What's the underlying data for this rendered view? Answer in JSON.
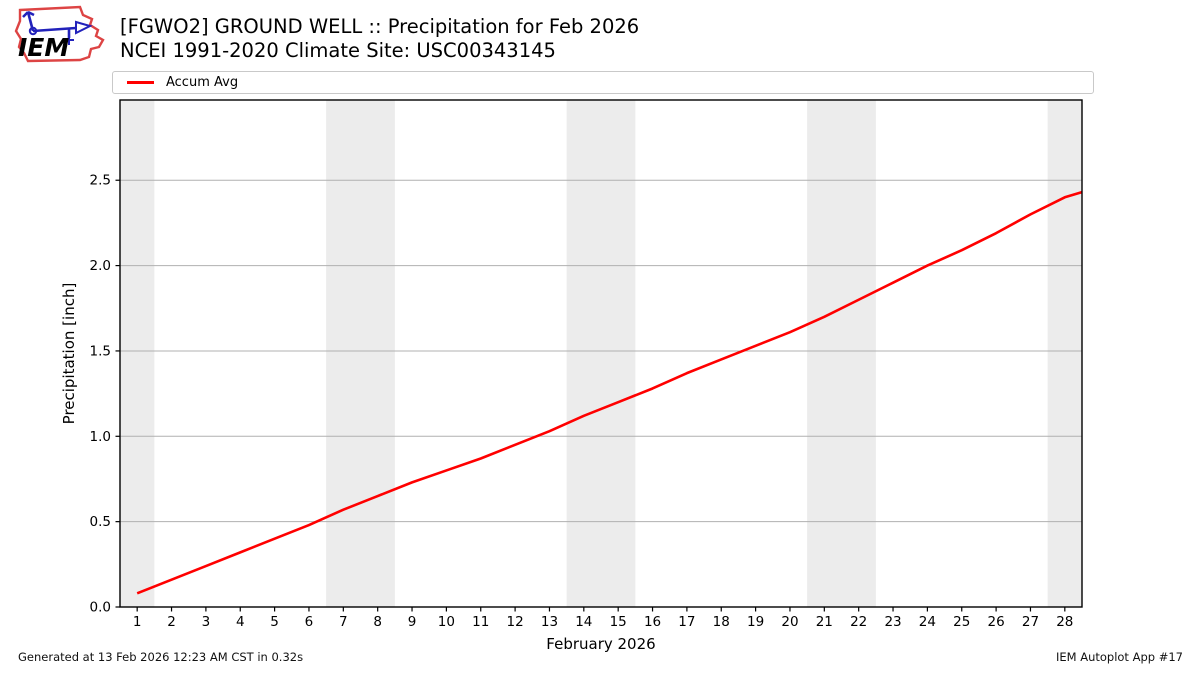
{
  "header": {
    "logo_text": "IEM"
  },
  "legend": {
    "items": [
      {
        "label": "Accum Avg",
        "color": "#ff0000"
      }
    ]
  },
  "footer": {
    "left": "Generated at 13 Feb 2026 12:23 AM CST in 0.32s",
    "right": "IEM Autoplot App #17"
  },
  "colors": {
    "line_red": "#ff0000",
    "weekend_band": "#ececec",
    "gridline": "#b0b0b0",
    "plot_border": "#000000",
    "logo_red": "#dd4444",
    "logo_blue": "#2222bb"
  },
  "chart_data": {
    "type": "line",
    "title": "[FGWO2] GROUND WELL :: Precipitation for Feb 2026",
    "subtitle": "NCEI 1991-2020 Climate Site: USC00343145",
    "xlabel": "February 2026",
    "ylabel": "Precipitation [inch]",
    "xlim": [
      0.5,
      28.5
    ],
    "ylim": [
      0,
      2.97
    ],
    "xticks": [
      1,
      2,
      3,
      4,
      5,
      6,
      7,
      8,
      9,
      10,
      11,
      12,
      13,
      14,
      15,
      16,
      17,
      18,
      19,
      20,
      21,
      22,
      23,
      24,
      25,
      26,
      27,
      28
    ],
    "ytick_values": [
      0,
      0.5,
      1,
      1.5,
      2,
      2.5
    ],
    "ytick_labels": [
      "0.0",
      "0.5",
      "1.0",
      "1.5",
      "2.0",
      "2.5"
    ],
    "grid": "horizontal-only",
    "legend_position": "full-width bar above plot",
    "weekend_bands": [
      [
        0.5,
        1.5
      ],
      [
        6.5,
        8.5
      ],
      [
        13.5,
        15.5
      ],
      [
        20.5,
        22.5
      ],
      [
        27.5,
        28.5
      ]
    ],
    "series": [
      {
        "name": "Accum Avg",
        "color": "#ff0000",
        "x": [
          1,
          2,
          3,
          4,
          5,
          6,
          7,
          8,
          9,
          10,
          11,
          12,
          13,
          14,
          15,
          16,
          17,
          18,
          19,
          20,
          21,
          22,
          23,
          24,
          25,
          26,
          27,
          28,
          28.5
        ],
        "y": [
          0.08,
          0.16,
          0.24,
          0.32,
          0.4,
          0.48,
          0.57,
          0.65,
          0.73,
          0.8,
          0.87,
          0.95,
          1.03,
          1.12,
          1.2,
          1.28,
          1.37,
          1.45,
          1.53,
          1.61,
          1.7,
          1.8,
          1.9,
          2.0,
          2.09,
          2.19,
          2.3,
          2.4,
          2.43
        ]
      }
    ]
  }
}
